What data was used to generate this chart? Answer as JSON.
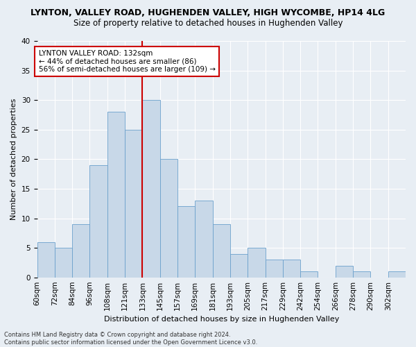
{
  "title": "LYNTON, VALLEY ROAD, HUGHENDEN VALLEY, HIGH WYCOMBE, HP14 4LG",
  "subtitle": "Size of property relative to detached houses in Hughenden Valley",
  "xlabel": "Distribution of detached houses by size in Hughenden Valley",
  "ylabel": "Number of detached properties",
  "footnote": "Contains HM Land Registry data © Crown copyright and database right 2024.\nContains public sector information licensed under the Open Government Licence v3.0.",
  "bin_labels": [
    "60sqm",
    "72sqm",
    "84sqm",
    "96sqm",
    "108sqm",
    "121sqm",
    "133sqm",
    "145sqm",
    "157sqm",
    "169sqm",
    "181sqm",
    "193sqm",
    "205sqm",
    "217sqm",
    "229sqm",
    "242sqm",
    "254sqm",
    "266sqm",
    "278sqm",
    "290sqm",
    "302sqm"
  ],
  "bar_heights": [
    6,
    5,
    9,
    19,
    28,
    25,
    30,
    20,
    12,
    13,
    9,
    4,
    5,
    3,
    3,
    1,
    0,
    2,
    1,
    0,
    1
  ],
  "bar_color": "#c8d8e8",
  "bar_edge_color": "#6aa0cc",
  "vline_position": 6,
  "ylim": [
    0,
    40
  ],
  "yticks": [
    0,
    5,
    10,
    15,
    20,
    25,
    30,
    35,
    40
  ],
  "annotation_title": "LYNTON VALLEY ROAD: 132sqm",
  "annotation_line1": "← 44% of detached houses are smaller (86)",
  "annotation_line2": "56% of semi-detached houses are larger (109) →",
  "annotation_box_facecolor": "#ffffff",
  "annotation_box_edgecolor": "#cc0000",
  "vline_color": "#cc0000",
  "bg_color": "#e8eef4",
  "grid_color": "#ffffff",
  "title_fontsize": 9,
  "subtitle_fontsize": 8.5,
  "ylabel_fontsize": 8,
  "xlabel_fontsize": 8,
  "tick_fontsize": 7.5,
  "annot_fontsize": 7.5,
  "footnote_fontsize": 6
}
